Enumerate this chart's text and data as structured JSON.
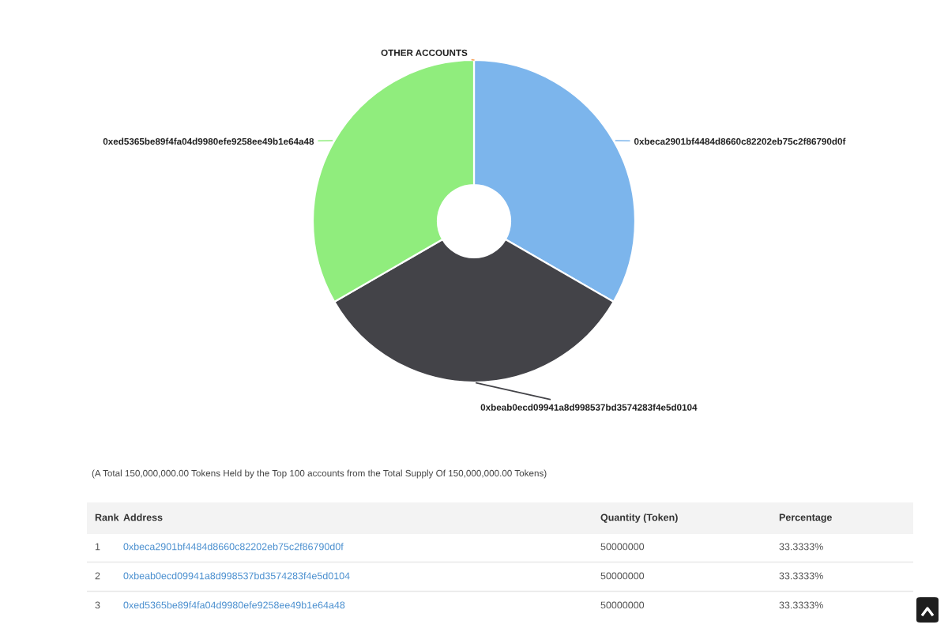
{
  "chart_data": [
    {
      "type": "donut",
      "categories": [
        "0xbeca2901bf4484d8660c82202eb75c2f86790d0f",
        "0xbeab0ecd09941a8d998537bd3574283f4e5d0104",
        "0xed5365be89f4fa04d9980efe9258ee49b1e64a48",
        "OTHER ACCOUNTS"
      ],
      "values": [
        33.3333,
        33.3333,
        33.3333,
        0
      ],
      "colors": [
        "#7cb5ec",
        "#434348",
        "#90ed7d",
        "#f7a35c"
      ]
    },
    {
      "type": "other",
      "title": "(A Total 150,000,000.00 Tokens Held by the Top 100 accounts from the Total Supply Of 150,000,000.00 Tokens)",
      "annotations": [
        "Rank",
        "Address",
        "Quantity (Token)",
        "Percentage",
        "1",
        "0xbeca2901bf4484d8660c82202eb75c2f86790d0f",
        "50000000",
        "33.3333%",
        "2",
        "0xbeab0ecd09941a8d998537bd3574283f4e5d0104",
        "50000000",
        "33.3333%",
        "3",
        "0xed5365be89f4fa04d9980efe9258ee49b1e64a48",
        "50000000",
        "33.3333%"
      ]
    }
  ]
}
